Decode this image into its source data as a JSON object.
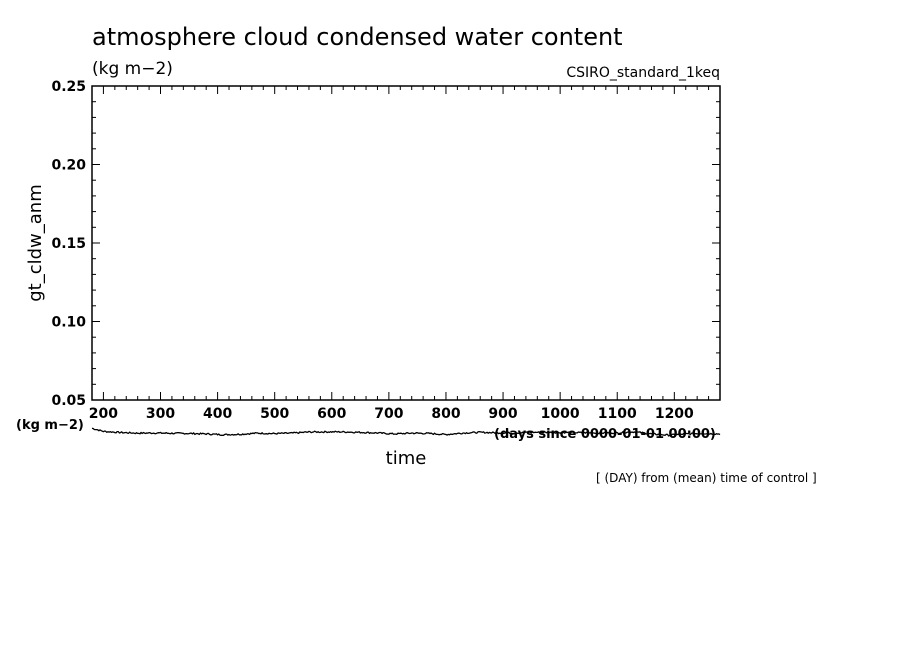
{
  "chart_data": {
    "type": "line",
    "title": "atmosphere cloud condensed water content",
    "units": "(kg m−2)",
    "run_label": "CSIRO_standard_1keq",
    "ylabel": "gt_cldw_anm",
    "ylabel_units": "(kg m−2)",
    "xlabel": "time",
    "xlabel_units": "(days since 0000-01-01 00:00)",
    "annotation": "[ (DAY) from (mean) time of control ]",
    "xlim": [
      180,
      1280
    ],
    "ylim": [
      0.05,
      0.25
    ],
    "x_ticks": [
      200,
      300,
      400,
      500,
      600,
      700,
      800,
      900,
      1000,
      1100,
      1200
    ],
    "y_ticks": [
      0.05,
      0.1,
      0.15,
      0.2,
      0.25
    ],
    "y_tick_labels": [
      "0.05",
      "0.10",
      "0.15",
      "0.20",
      "0.25"
    ],
    "grid": false,
    "series": [
      {
        "x": [
          180,
          200,
          230,
          260,
          290,
          320,
          350,
          380,
          410,
          440,
          470,
          500,
          530,
          560,
          590,
          620,
          650,
          680,
          710,
          740,
          770,
          800,
          830,
          860,
          890,
          920,
          950,
          980,
          1010,
          1040,
          1070,
          1100,
          1130,
          1160,
          1190,
          1220,
          1250,
          1280
        ],
        "values": [
          0.032,
          0.03,
          0.0293,
          0.0289,
          0.029,
          0.0288,
          0.0287,
          0.0284,
          0.0279,
          0.0282,
          0.0289,
          0.0286,
          0.0289,
          0.0296,
          0.0297,
          0.0297,
          0.0294,
          0.029,
          0.0284,
          0.0289,
          0.0287,
          0.028,
          0.029,
          0.0294,
          0.0291,
          0.029,
          0.0294,
          0.0294,
          0.0293,
          0.0292,
          0.029,
          0.0291,
          0.0297,
          0.0284,
          0.0276,
          0.0284,
          0.0287,
          0.0284
        ]
      }
    ]
  }
}
